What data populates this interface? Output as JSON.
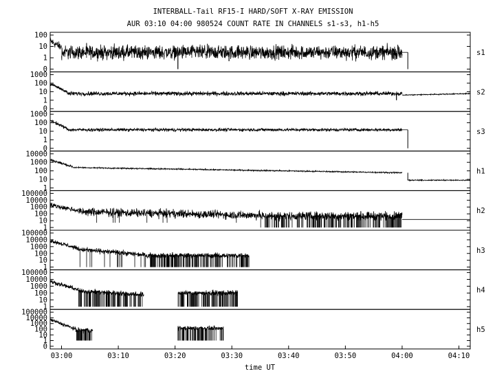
{
  "chart_data": {
    "type": "line",
    "title": "INTERBALL-Tail RF15-I HARD/SOFT X-RAY EMISSION",
    "subtitle": "AUR 03:10 04:00 980524  COUNT RATE IN CHANNELS s1-s3, h1-h5",
    "xlabel": "time UT",
    "x_ticks": [
      "03:00",
      "03:10",
      "03:20",
      "03:30",
      "03:40",
      "03:50",
      "04:00",
      "04:10"
    ],
    "xlim": [
      "02:58",
      "04:12"
    ],
    "yscale": "log",
    "grid": false,
    "legend": "panel labels at right",
    "panels": [
      {
        "name": "s1",
        "yticks": [
          "100",
          "10",
          "1",
          "0"
        ],
        "segments": [
          {
            "start": "02:58",
            "end": "03:00",
            "from": 30,
            "to": 8,
            "noise": 0.3,
            "drops": false
          },
          {
            "start": "03:00",
            "end": "04:00",
            "level": 3,
            "noise": 0.5,
            "drops": true,
            "drop_to": 1
          },
          {
            "start": "04:00",
            "end": "04:01",
            "level": 3,
            "noise": 0,
            "drops": false
          }
        ],
        "spikes": [
          {
            "t": "03:20.5",
            "to": 0
          },
          {
            "t": "03:29.5",
            "to": 0.5
          },
          {
            "t": "03:58.5",
            "to": 0.8
          }
        ],
        "step": {
          "t": "04:01",
          "to": 0
        }
      },
      {
        "name": "s2",
        "yticks": [
          "1000",
          "100",
          "10",
          "1",
          "0"
        ],
        "segments": [
          {
            "start": "02:58",
            "end": "03:01",
            "from": 80,
            "to": 10,
            "noise": 0.15,
            "drops": false
          },
          {
            "start": "03:01",
            "end": "04:00",
            "level": 6,
            "noise": 0.2,
            "drops": false
          },
          {
            "start": "04:00",
            "end": "04:12",
            "from": 4,
            "to": 6,
            "noise": 0.05,
            "drops": false
          }
        ],
        "spikes": [
          {
            "t": "03:59",
            "to": 1
          }
        ],
        "step": null
      },
      {
        "name": "s3",
        "yticks": [
          "1000",
          "100",
          "10",
          "1",
          "0"
        ],
        "segments": [
          {
            "start": "02:58",
            "end": "03:01",
            "from": 200,
            "to": 20,
            "noise": 0.15,
            "drops": false
          },
          {
            "start": "03:01",
            "end": "04:00",
            "level": 15,
            "noise": 0.15,
            "drops": false
          },
          {
            "start": "04:00",
            "end": "04:01",
            "level": 15,
            "noise": 0,
            "drops": false
          }
        ],
        "spikes": [],
        "step": {
          "t": "04:01",
          "to": 0
        }
      },
      {
        "name": "h1",
        "yticks": [
          "10000",
          "1000",
          "100",
          "10",
          "1"
        ],
        "segments": [
          {
            "start": "02:58",
            "end": "03:02",
            "from": 2000,
            "to": 300,
            "noise": 0.12,
            "drops": false
          },
          {
            "start": "03:02",
            "end": "04:00",
            "from": 250,
            "to": 60,
            "noise": 0.06,
            "drops": false
          },
          {
            "start": "04:01",
            "end": "04:12",
            "level": 8,
            "noise": 0.05,
            "drops": false
          }
        ],
        "spikes": [],
        "step": {
          "t": "04:01",
          "from": 60,
          "to": 8
        }
      },
      {
        "name": "h2",
        "yticks": [
          "100000",
          "10000",
          "1000",
          "100",
          "10",
          "1"
        ],
        "segments": [
          {
            "start": "02:58",
            "end": "03:03",
            "from": 2000,
            "to": 300,
            "noise": 0.3,
            "drops": false
          },
          {
            "start": "03:03",
            "end": "03:35",
            "from": 200,
            "to": 60,
            "noise": 0.5,
            "drops": true,
            "drop_to": 5,
            "drop_rate": 0.01
          },
          {
            "start": "03:35",
            "end": "04:00",
            "level": 50,
            "noise": 0.5,
            "drops": true,
            "drop_to": 1,
            "drop_rate": 0.25
          },
          {
            "start": "04:00",
            "end": "04:12",
            "level": 15,
            "noise": 0,
            "drops": false
          }
        ],
        "spikes": [],
        "step": null
      },
      {
        "name": "h3",
        "yticks": [
          "100000",
          "10000",
          "1000",
          "100",
          "10",
          "1"
        ],
        "segments": [
          {
            "start": "02:58",
            "end": "03:03",
            "from": 8000,
            "to": 500,
            "noise": 0.25,
            "drops": false
          },
          {
            "start": "03:03",
            "end": "03:15",
            "from": 400,
            "to": 60,
            "noise": 0.3,
            "drops": true,
            "drop_to": 1,
            "drop_rate": 0.04
          },
          {
            "start": "03:15",
            "end": "03:33",
            "level": 50,
            "noise": 0.3,
            "drops": true,
            "drop_to": 1,
            "drop_rate": 0.3
          }
        ],
        "spikes": [],
        "step": {
          "t": "03:33",
          "to": 1
        }
      },
      {
        "name": "h4",
        "yticks": [
          "100000",
          "10000",
          "1000",
          "100",
          "10",
          "1"
        ],
        "segments": [
          {
            "start": "02:58",
            "end": "03:03",
            "from": 5000,
            "to": 300,
            "noise": 0.25,
            "drops": false
          },
          {
            "start": "03:03",
            "end": "03:14.5",
            "from": 200,
            "to": 60,
            "noise": 0.3,
            "drops": true,
            "drop_to": 1,
            "drop_rate": 0.3
          },
          {
            "start": "03:20.5",
            "end": "03:31",
            "level": 100,
            "noise": 0.3,
            "drops": true,
            "drop_to": 1,
            "drop_rate": 0.3
          }
        ],
        "spikes": [],
        "step": null
      },
      {
        "name": "h5",
        "yticks": [
          "100000",
          "10000",
          "1000",
          "100",
          "10",
          "1",
          "0"
        ],
        "segments": [
          {
            "start": "02:58",
            "end": "03:02.5",
            "from": 5000,
            "to": 100,
            "noise": 0.25,
            "drops": false
          },
          {
            "start": "03:02.5",
            "end": "03:05.5",
            "level": 60,
            "noise": 0.4,
            "drops": true,
            "drop_to": 1,
            "drop_rate": 0.35
          },
          {
            "start": "03:20.5",
            "end": "03:28.5",
            "level": 150,
            "noise": 0.3,
            "drops": true,
            "drop_to": 1,
            "drop_rate": 0.3
          }
        ],
        "spikes": [],
        "step": null
      }
    ]
  }
}
